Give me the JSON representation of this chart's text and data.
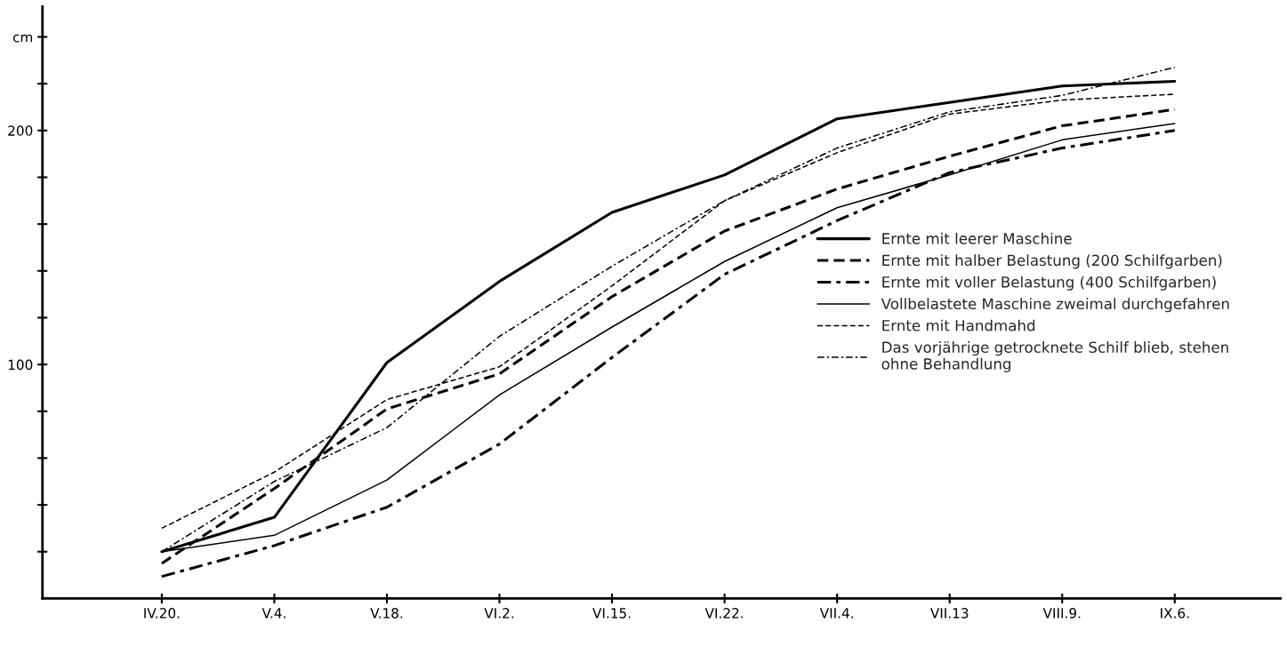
{
  "chart_data": {
    "type": "line",
    "categories": [
      "IV.20.",
      "V.4.",
      "V.18.",
      "VI.2.",
      "VI.15.",
      "VI.22.",
      "VII.4.",
      "VII.13",
      "VIII.9.",
      "IX.6."
    ],
    "series": [
      {
        "name": "Ernte mit leerer Maschine",
        "color": "#000000",
        "line_style": "solid",
        "values": [
          20,
          34.7,
          100.8,
          135.5,
          165,
          181,
          205,
          212,
          219,
          221
        ]
      },
      {
        "name": "Ernte mit halber Belastung (200 Schilfgarben)",
        "color": "#000000",
        "line_style": "dashed",
        "values": [
          15,
          47,
          81,
          96,
          129,
          157,
          175,
          189,
          202,
          209
        ]
      },
      {
        "name": "Ernte mit voller Belastung (400 Schilfgarben)",
        "color": "#000000",
        "line_style": "dashdot",
        "values": [
          9.4,
          22.6,
          39,
          66,
          103,
          138.5,
          161.5,
          182,
          192.5,
          200
        ]
      },
      {
        "name": "Vollbelastete Maschine zweimal durchgefahren",
        "color": "#000000",
        "line_style": "solid",
        "values": [
          20,
          27,
          50.6,
          87,
          116,
          144,
          167,
          181,
          196,
          203
        ]
      },
      {
        "name": "Ernte mit Handmahd",
        "color": "#000000",
        "line_style": "dashed",
        "values": [
          30,
          54,
          85,
          99,
          133.6,
          170,
          190.5,
          207,
          213,
          215.5
        ]
      },
      {
        "name": "Das vorjährige getrocknete Schilf blieb, stehen\nohne Behandlung",
        "color": "#000000",
        "line_style": "dashdot",
        "values": [
          20,
          50,
          73,
          112,
          142,
          170,
          192.5,
          208,
          215,
          227
        ]
      }
    ],
    "ylim": [
      0,
      253
    ],
    "yticks": [
      {
        "value": 20,
        "label": null
      },
      {
        "value": 40,
        "label": null
      },
      {
        "value": 60,
        "label": null
      },
      {
        "value": 80,
        "label": null
      },
      100,
      {
        "value": 120,
        "label": null
      },
      {
        "value": 140,
        "label": null
      },
      {
        "value": 160,
        "label": null
      },
      {
        "value": 180,
        "label": null
      },
      200,
      {
        "value": 220,
        "label": null
      },
      {
        "value": 240,
        "label": "cm"
      }
    ],
    "grid": false,
    "legend": "center right"
  }
}
